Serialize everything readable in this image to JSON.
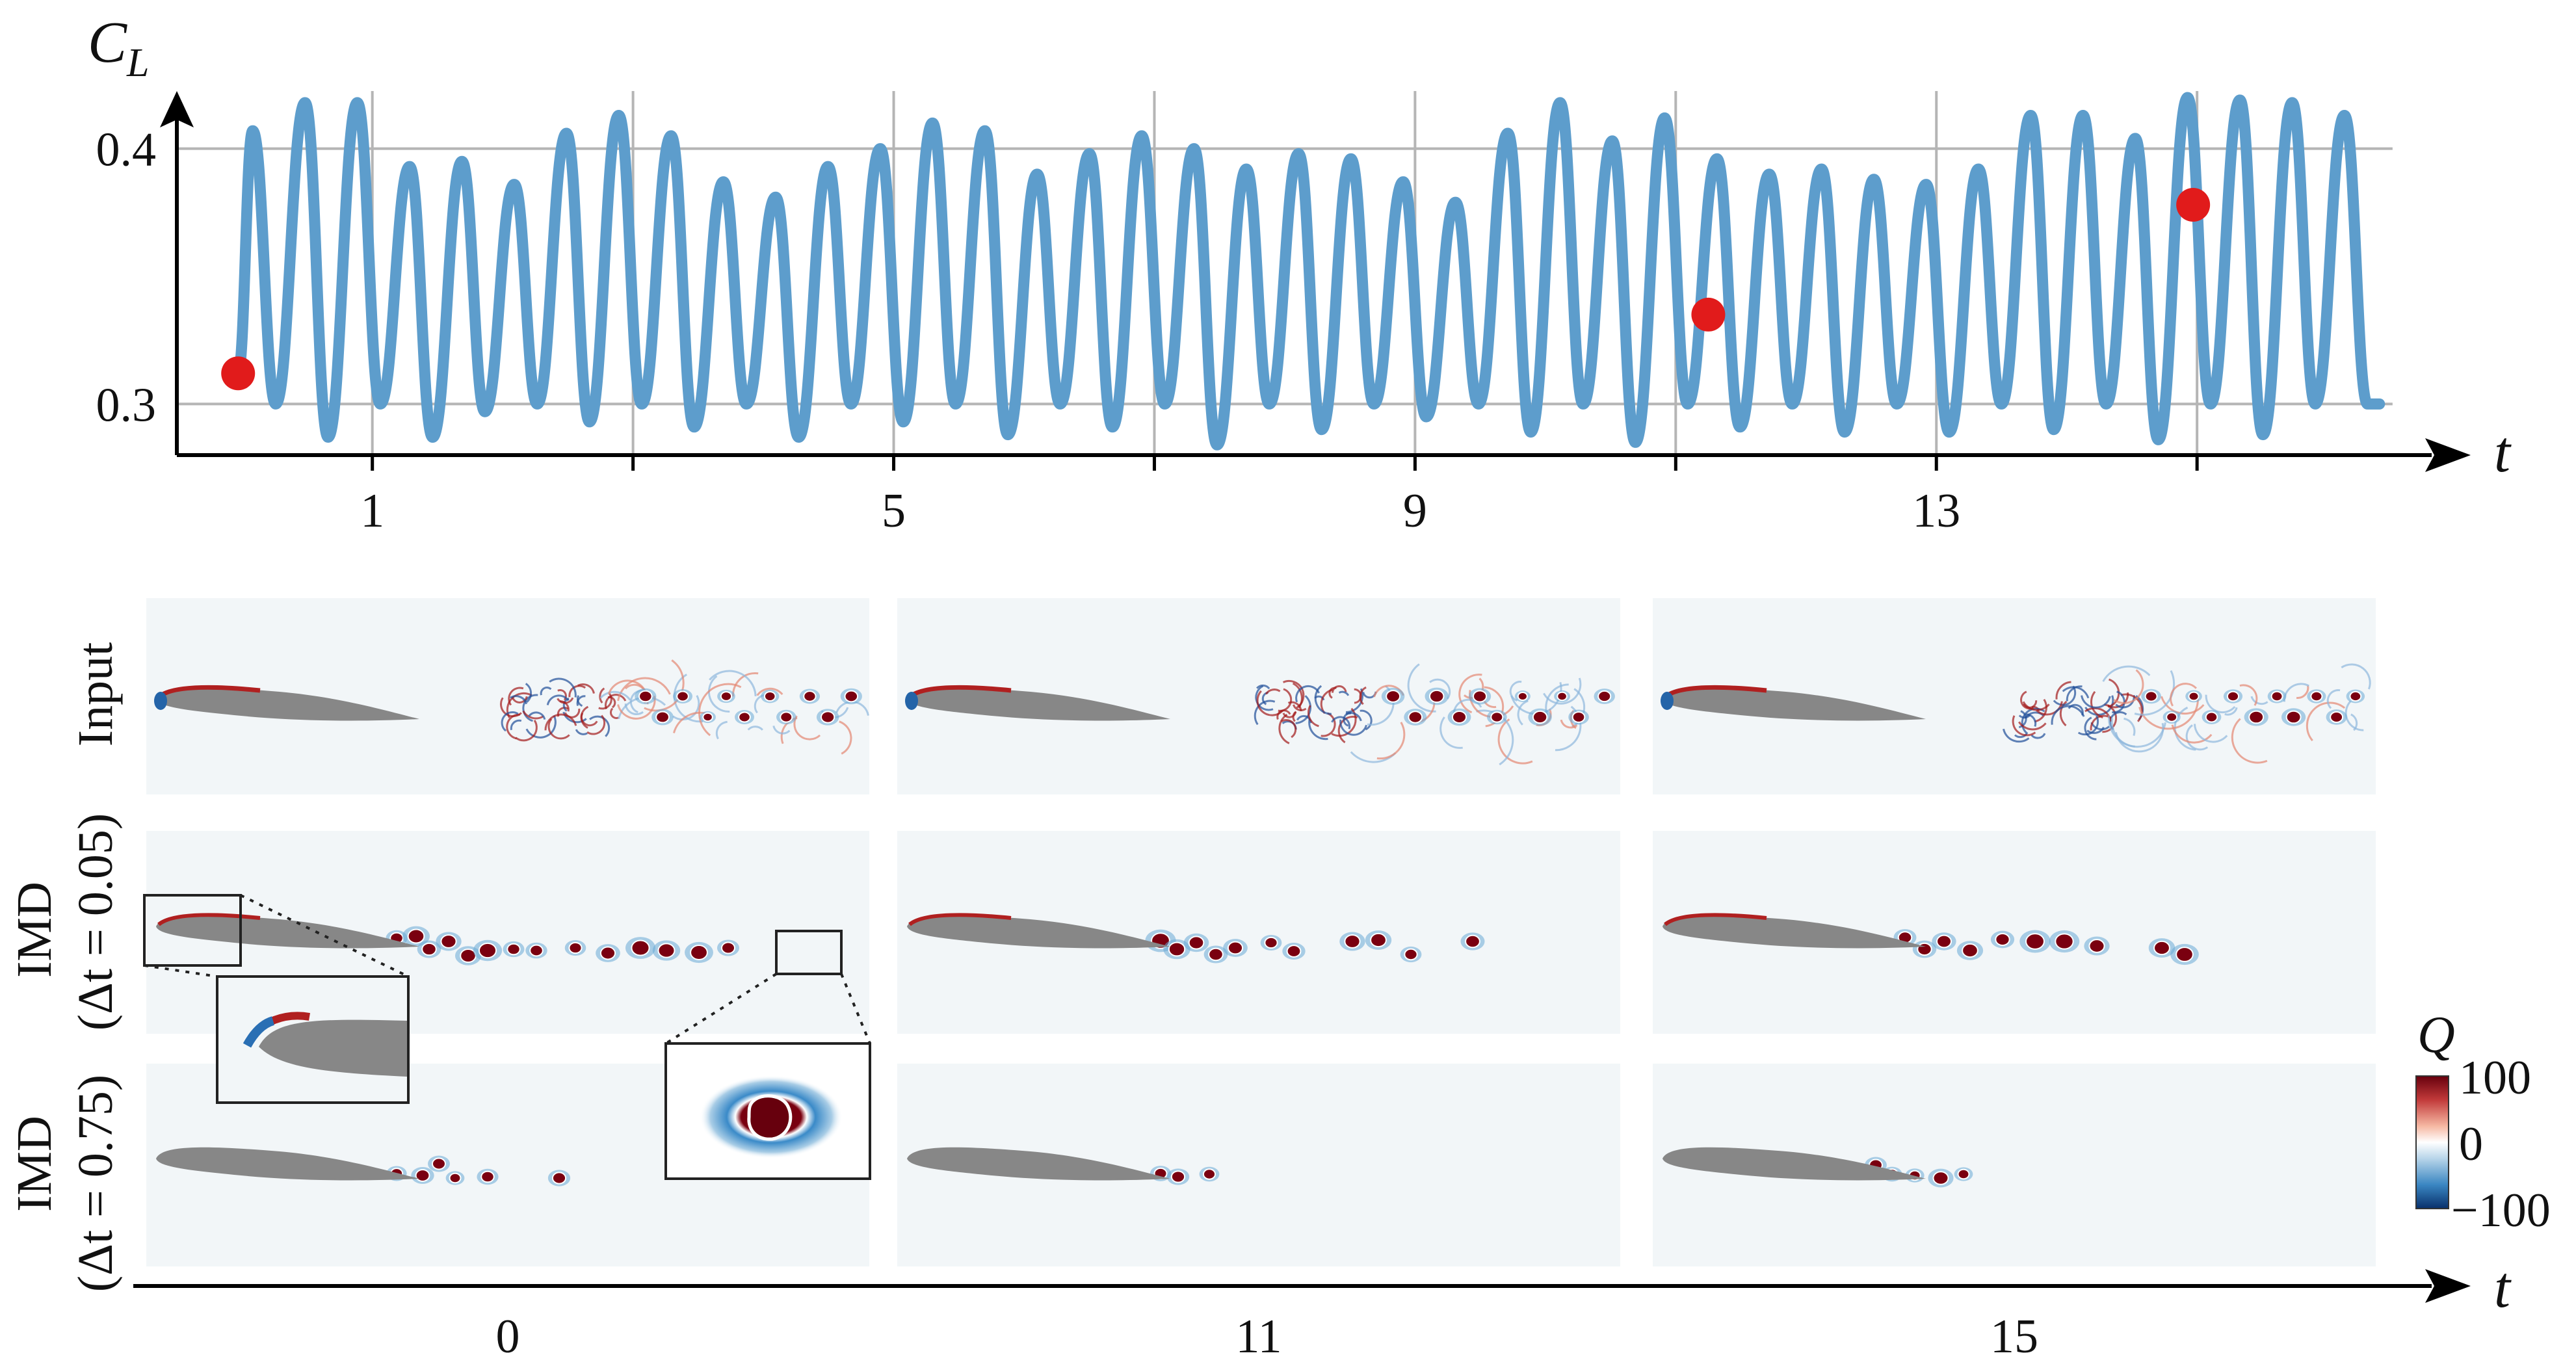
{
  "chart_data": {
    "type": "line",
    "ylabel": "C_L",
    "xlabel": "t",
    "ylim": [
      0.28,
      0.42
    ],
    "xlim": [
      -0.5,
      16.8
    ],
    "x_ticks": [
      1,
      5,
      9,
      13
    ],
    "y_ticks": [
      0.3,
      0.4
    ],
    "grid": true,
    "x_gridlines": [
      1,
      3,
      5,
      7,
      9,
      11,
      13,
      15
    ],
    "y_gridlines": [
      0.3,
      0.4
    ],
    "line_color": "#5d9dcc",
    "marker_color": "#e11b1b",
    "peaks": [
      0.407,
      0.418,
      0.418,
      0.393,
      0.395,
      0.386,
      0.406,
      0.413,
      0.405,
      0.387,
      0.381,
      0.393,
      0.4,
      0.41,
      0.407,
      0.39,
      0.398,
      0.405,
      0.4,
      0.392,
      0.398,
      0.396,
      0.387,
      0.379,
      0.406,
      0.418,
      0.403,
      0.412,
      0.396,
      0.39,
      0.392,
      0.388,
      0.386,
      0.392,
      0.413,
      0.413,
      0.404,
      0.42,
      0.419,
      0.418,
      0.413
    ],
    "troughs": [
      0.3,
      0.287,
      0.3,
      0.287,
      0.297,
      0.3,
      0.293,
      0.3,
      0.291,
      0.3,
      0.287,
      0.3,
      0.293,
      0.3,
      0.288,
      0.3,
      0.291,
      0.3,
      0.284,
      0.3,
      0.29,
      0.3,
      0.295,
      0.3,
      0.289,
      0.3,
      0.285,
      0.3,
      0.291,
      0.3,
      0.289,
      0.3,
      0.289,
      0.3,
      0.29,
      0.3,
      0.286,
      0.3,
      0.288,
      0.3,
      0.3
    ],
    "markers": [
      {
        "t": -0.03,
        "value": 0.312
      },
      {
        "t": 11.25,
        "value": 0.335
      },
      {
        "t": 14.97,
        "value": 0.378
      }
    ]
  },
  "snapshots": {
    "times": [
      "0",
      "11",
      "15"
    ],
    "time_axis_label": "t",
    "rows": [
      {
        "label": "Input"
      },
      {
        "label": "IMD",
        "sublabel": "(Δt = 0.05)"
      },
      {
        "label": "IMD",
        "sublabel": "(Δt = 0.75)"
      }
    ]
  },
  "colorbar": {
    "title": "Q",
    "max_label": "100",
    "mid_label": "0",
    "min_label": "−100",
    "colors": [
      "#08306b",
      "#2c7fb8",
      "#c6dbef",
      "#ffffff",
      "#fcbba1",
      "#d6604d",
      "#67000d"
    ]
  }
}
